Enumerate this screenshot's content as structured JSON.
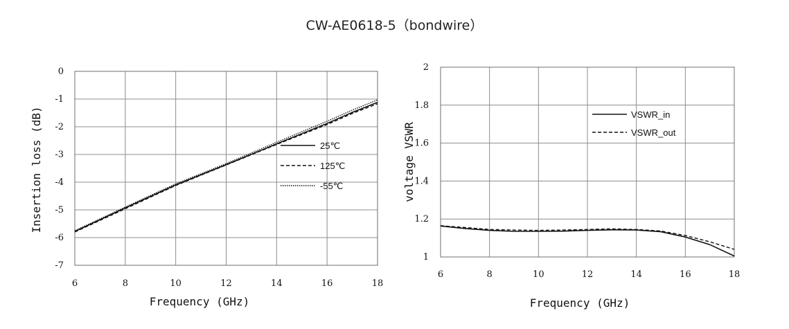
{
  "title": "CW-AE0618-5（bondwire）",
  "chart_data": [
    {
      "type": "line",
      "xlabel": "Frequency (GHz)",
      "ylabel": "Insertion loss (dB)",
      "xlim": [
        6,
        18
      ],
      "ylim": [
        -7,
        0
      ],
      "xticks": [
        "6",
        "8",
        "10",
        "12",
        "14",
        "16",
        "18"
      ],
      "yticks": [
        "0",
        "-1",
        "-2",
        "-3",
        "-4",
        "-5",
        "-6",
        "-7"
      ],
      "grid": true,
      "legend_position": "center-right",
      "series": [
        {
          "name": "25℃",
          "style": "solid",
          "x": [
            6,
            8,
            10,
            12,
            14,
            16,
            17,
            18
          ],
          "y": [
            -5.78,
            -4.93,
            -4.1,
            -3.37,
            -2.62,
            -1.88,
            -1.48,
            -1.12
          ]
        },
        {
          "name": "125℃",
          "style": "dashed",
          "x": [
            6,
            8,
            10,
            12,
            14,
            16,
            17,
            18
          ],
          "y": [
            -5.8,
            -4.96,
            -4.12,
            -3.38,
            -2.64,
            -1.92,
            -1.52,
            -1.17
          ]
        },
        {
          "name": "-55℃",
          "style": "dotted",
          "x": [
            6,
            8,
            10,
            12,
            14,
            16,
            17,
            18
          ],
          "y": [
            -5.75,
            -4.9,
            -4.06,
            -3.33,
            -2.56,
            -1.8,
            -1.4,
            -1.03
          ]
        }
      ]
    },
    {
      "type": "line",
      "xlabel": "Frequency (GHz)",
      "ylabel": "voltage VSWR",
      "xlim": [
        6,
        18
      ],
      "ylim": [
        1,
        2
      ],
      "xticks": [
        "6",
        "8",
        "10",
        "12",
        "14",
        "16",
        "18"
      ],
      "yticks": [
        "2",
        "1.8",
        "1.6",
        "1.4",
        "1.2",
        "1"
      ],
      "grid": true,
      "legend_position": "top-right",
      "series": [
        {
          "name": "VSWR_in",
          "style": "solid",
          "x": [
            6,
            7,
            8,
            9,
            10,
            11,
            12,
            13,
            14,
            15,
            16,
            17,
            18
          ],
          "y": [
            1.163,
            1.15,
            1.14,
            1.135,
            1.135,
            1.136,
            1.14,
            1.143,
            1.142,
            1.133,
            1.105,
            1.065,
            1.005
          ]
        },
        {
          "name": "VSWR_out",
          "style": "dashed",
          "x": [
            6,
            7,
            8,
            9,
            10,
            11,
            12,
            13,
            14,
            15,
            16,
            17,
            18
          ],
          "y": [
            1.165,
            1.155,
            1.145,
            1.142,
            1.14,
            1.142,
            1.145,
            1.148,
            1.145,
            1.137,
            1.113,
            1.08,
            1.04
          ]
        }
      ]
    }
  ]
}
